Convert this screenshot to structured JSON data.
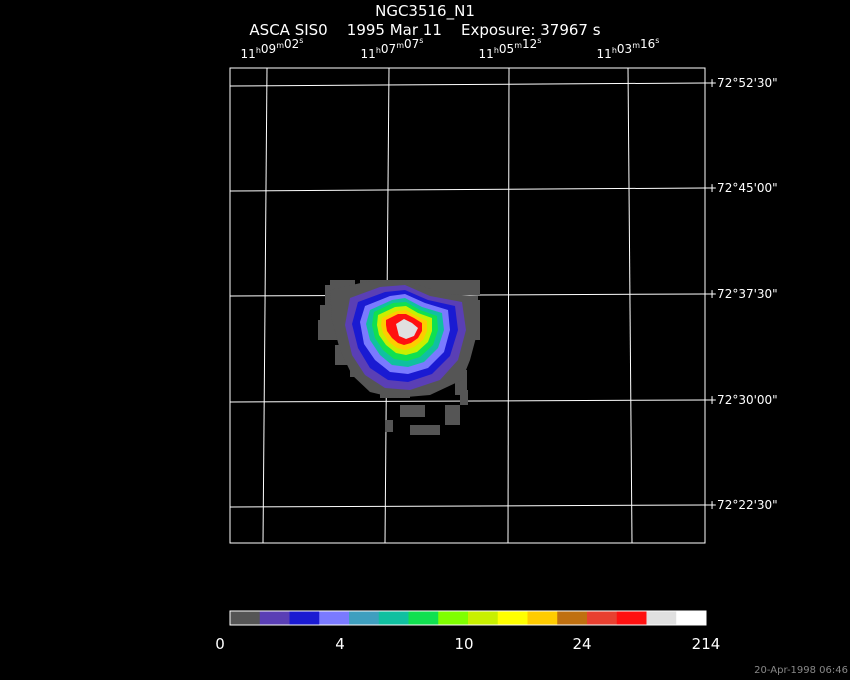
{
  "header": {
    "object": "NGC3516_N1",
    "instrument": "ASCA SIS0",
    "date": "1995 Mar 11",
    "exposure": "Exposure: 37967 s"
  },
  "chart_data": {
    "type": "heatmap",
    "ra_labels": [
      {
        "h": "11",
        "m": "09",
        "s": "02"
      },
      {
        "h": "11",
        "m": "07",
        "s": "07"
      },
      {
        "h": "11",
        "m": "05",
        "s": "12"
      },
      {
        "h": "11",
        "m": "03",
        "s": "16"
      }
    ],
    "dec_labels": [
      "+72°52'30\"",
      "+72°45'00\"",
      "+72°37'30\"",
      "+72°30'00\"",
      "+72°22'30\""
    ],
    "source_peak_counts": 214,
    "colorbar": {
      "colors": [
        "#555555",
        "#5a3fb5",
        "#1a1ad2",
        "#7a7aff",
        "#3f9fbf",
        "#10c0a0",
        "#10e050",
        "#7fff00",
        "#c8f000",
        "#ffff00",
        "#ffcc00",
        "#c07010",
        "#e84030",
        "#ff1010",
        "#e0e0e0",
        "#ffffff"
      ],
      "tick_labels": [
        "0",
        "4",
        "10",
        "24",
        "214"
      ]
    }
  },
  "footer": {
    "timestamp": "20-Apr-1998 06:46"
  }
}
